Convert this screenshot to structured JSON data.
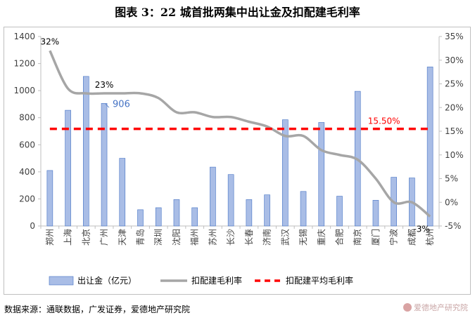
{
  "title": "图表 3：22 城首批两集中出让金及扣配建毛利率",
  "source": "数据来源：通联数据，广发证券，爱德地产研究院",
  "watermark": "爱德地产研究院",
  "chart_data": {
    "type": "bar",
    "categories": [
      "郑州",
      "上海",
      "北京",
      "广州",
      "天津",
      "青岛",
      "深圳",
      "沈阳",
      "福州",
      "苏州",
      "长沙",
      "长春",
      "济南",
      "武汉",
      "无锡",
      "重庆",
      "合肥",
      "南京",
      "厦门",
      "宁波",
      "成都",
      "杭州"
    ],
    "series": [
      {
        "name": "出让金（亿元）",
        "kind": "bar",
        "axis": "left",
        "color": "#a9bde6",
        "values": [
          410,
          855,
          1105,
          906,
          500,
          120,
          135,
          195,
          135,
          435,
          380,
          195,
          230,
          785,
          255,
          765,
          220,
          995,
          190,
          360,
          355,
          1175
        ]
      },
      {
        "name": "扣配建毛利率",
        "kind": "line",
        "axis": "right",
        "color": "#a6a6a6",
        "values": [
          32,
          24,
          23,
          23,
          23,
          23,
          22,
          19,
          19,
          18,
          18,
          17,
          16,
          14,
          14,
          11,
          10,
          9,
          5,
          0,
          0,
          -3
        ]
      },
      {
        "name": "扣配建平均毛利率",
        "kind": "line",
        "axis": "right",
        "color": "#ff0000",
        "dashed": true,
        "values": [
          15.5,
          15.5,
          15.5,
          15.5,
          15.5,
          15.5,
          15.5,
          15.5,
          15.5,
          15.5,
          15.5,
          15.5,
          15.5,
          15.5,
          15.5,
          15.5,
          15.5,
          15.5,
          15.5,
          15.5,
          15.5,
          15.5
        ]
      }
    ],
    "ylim_left": [
      0,
      1400
    ],
    "yticks_left": [
      0,
      200,
      400,
      600,
      800,
      1000,
      1200,
      1400
    ],
    "ylim_right": [
      -5,
      35
    ],
    "yticks_right": [
      "-5%",
      "0%",
      "5%",
      "10%",
      "15%",
      "20%",
      "25%",
      "30%",
      "35%"
    ],
    "annotations": [
      {
        "text": "32%",
        "series": 1,
        "index": 0,
        "color": "#000000"
      },
      {
        "text": "23%",
        "series": 1,
        "index": 3,
        "color": "#000000"
      },
      {
        "text": "906",
        "series": 0,
        "index": 3,
        "color": "#4472c4"
      },
      {
        "text": "15.50%",
        "series": 2,
        "index": 19,
        "color": "#ff0000"
      },
      {
        "text": "-3%",
        "series": 1,
        "index": 21,
        "color": "#000000"
      }
    ],
    "legend_position": "bottom",
    "grid": false
  }
}
